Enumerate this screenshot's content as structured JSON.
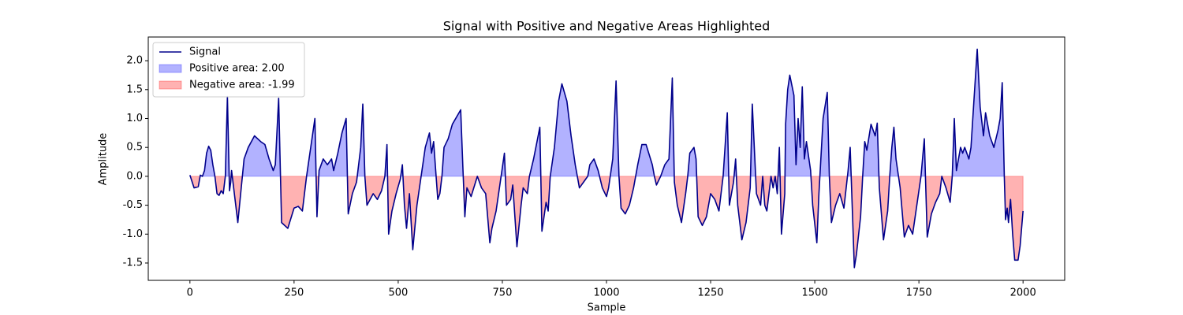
{
  "chart_data": {
    "type": "line",
    "title": "Signal with Positive and Negative Areas Highlighted",
    "x_label": "Sample",
    "y_label": "Amplitude",
    "xlim": [
      -100,
      2100
    ],
    "ylim": [
      -1.8,
      2.41
    ],
    "xticks": [
      0,
      250,
      500,
      750,
      1000,
      1250,
      1500,
      1750,
      2000
    ],
    "yticks": [
      -1.5,
      {
        "value": -1.0,
        "label": "-1.0"
      },
      -0.5,
      {
        "value": 0,
        "label": "0.0"
      },
      0.5,
      {
        "value": 1.0,
        "label": "1.0"
      },
      1.5,
      {
        "value": 2.0,
        "label": "2.0"
      }
    ],
    "legend": "upper left",
    "x": [
      0,
      10,
      20,
      25,
      30,
      35,
      40,
      45,
      50,
      55,
      60,
      65,
      70,
      75,
      80,
      85,
      90,
      95,
      98,
      100,
      115,
      130,
      140,
      155,
      170,
      180,
      190,
      200,
      205,
      213,
      220,
      235,
      250,
      260,
      270,
      280,
      290,
      300,
      305,
      310,
      320,
      330,
      340,
      345,
      355,
      365,
      375,
      380,
      390,
      400,
      410,
      415,
      420,
      425,
      440,
      450,
      460,
      468,
      473,
      477,
      485,
      495,
      505,
      510,
      515,
      520,
      527,
      535,
      545,
      555,
      565,
      575,
      580,
      585,
      595,
      600,
      605,
      610,
      620,
      630,
      650,
      655,
      660,
      665,
      675,
      690,
      700,
      710,
      720,
      725,
      735,
      745,
      755,
      760,
      770,
      775,
      785,
      795,
      800,
      810,
      815,
      825,
      840,
      845,
      855,
      860,
      865,
      875,
      885,
      893,
      905,
      915,
      925,
      935,
      945,
      955,
      960,
      970,
      980,
      990,
      1000,
      1005,
      1015,
      1023,
      1030,
      1035,
      1045,
      1055,
      1065,
      1075,
      1085,
      1095,
      1110,
      1115,
      1120,
      1130,
      1140,
      1150,
      1158,
      1163,
      1170,
      1180,
      1190,
      1195,
      1200,
      1210,
      1215,
      1220,
      1230,
      1240,
      1250,
      1260,
      1270,
      1280,
      1290,
      1295,
      1305,
      1310,
      1315,
      1325,
      1335,
      1345,
      1350,
      1360,
      1370,
      1375,
      1380,
      1385,
      1395,
      1400,
      1405,
      1410,
      1415,
      1420,
      1428,
      1430,
      1435,
      1440,
      1450,
      1455,
      1460,
      1465,
      1470,
      1475,
      1480,
      1490,
      1495,
      1505,
      1510,
      1520,
      1530,
      1535,
      1540,
      1550,
      1560,
      1570,
      1580,
      1585,
      1595,
      1600,
      1610,
      1615,
      1620,
      1625,
      1635,
      1645,
      1650,
      1655,
      1665,
      1675,
      1680,
      1685,
      1690,
      1695,
      1705,
      1715,
      1725,
      1735,
      1745,
      1755,
      1763,
      1770,
      1780,
      1790,
      1800,
      1805,
      1815,
      1825,
      1830,
      1835,
      1840,
      1845,
      1850,
      1855,
      1860,
      1870,
      1875,
      1882,
      1890,
      1897,
      1905,
      1910,
      1920,
      1930,
      1940,
      1945,
      1950,
      1955,
      1958,
      1962,
      1965,
      1970,
      1975,
      1980,
      1988,
      1993,
      2000
    ],
    "series": [
      {
        "name": "Signal",
        "color": "#00008b",
        "values": [
          0.02,
          -0.2,
          -0.18,
          0.02,
          0.0,
          0.1,
          0.4,
          0.52,
          0.45,
          0.2,
          0.0,
          -0.3,
          -0.33,
          -0.25,
          -0.3,
          0.0,
          1.38,
          -0.25,
          -0.1,
          0.1,
          -0.8,
          0.3,
          0.5,
          0.7,
          0.6,
          0.55,
          0.3,
          0.1,
          0.2,
          1.35,
          -0.8,
          -0.9,
          -0.55,
          -0.52,
          -0.6,
          0.0,
          0.5,
          1.0,
          -0.7,
          0.1,
          0.3,
          0.2,
          0.3,
          0.1,
          0.4,
          0.75,
          1.0,
          -0.65,
          -0.3,
          -0.1,
          0.5,
          1.25,
          0.0,
          -0.5,
          -0.3,
          -0.4,
          -0.25,
          0.0,
          0.55,
          -1.0,
          -0.6,
          -0.3,
          -0.05,
          0.2,
          -0.5,
          -0.9,
          -0.3,
          -1.27,
          -0.5,
          0.0,
          0.5,
          0.75,
          0.4,
          0.6,
          -0.4,
          -0.3,
          0.0,
          0.5,
          0.65,
          0.9,
          1.15,
          0.2,
          -0.7,
          -0.2,
          -0.35,
          0.0,
          -0.2,
          -0.3,
          -1.15,
          -0.9,
          -0.6,
          -0.1,
          0.4,
          -0.5,
          -0.4,
          -0.15,
          -1.22,
          -0.5,
          -0.2,
          -0.3,
          0.0,
          0.3,
          0.85,
          -0.95,
          -0.45,
          -0.6,
          0.0,
          0.5,
          1.3,
          1.6,
          1.3,
          0.7,
          0.2,
          -0.2,
          -0.1,
          0.0,
          0.2,
          0.3,
          0.1,
          -0.2,
          -0.35,
          -0.2,
          0.3,
          1.65,
          0.0,
          -0.55,
          -0.65,
          -0.5,
          -0.2,
          0.2,
          0.55,
          0.55,
          0.2,
          0.0,
          -0.15,
          0.0,
          0.2,
          0.3,
          1.7,
          -0.1,
          -0.5,
          -0.8,
          -0.3,
          0.0,
          0.4,
          0.5,
          0.3,
          -0.7,
          -0.85,
          -0.7,
          -0.3,
          -0.4,
          -0.6,
          0.0,
          1.1,
          -0.5,
          -0.1,
          0.3,
          -0.5,
          -1.1,
          -0.8,
          -0.2,
          1.25,
          -0.3,
          -0.5,
          0.0,
          -0.5,
          -0.6,
          0.0,
          -0.2,
          0.0,
          -0.3,
          0.5,
          -1.0,
          -0.3,
          0.9,
          1.5,
          1.75,
          1.4,
          0.2,
          1.0,
          0.5,
          1.55,
          0.3,
          0.6,
          0.1,
          -0.5,
          -1.15,
          -0.3,
          1.0,
          1.45,
          0.0,
          -0.8,
          -0.5,
          -0.3,
          -0.55,
          0.1,
          0.5,
          -1.58,
          -1.35,
          -0.7,
          0.0,
          0.6,
          0.45,
          0.9,
          0.7,
          0.92,
          -0.2,
          -1.1,
          -0.6,
          0.0,
          0.5,
          0.85,
          0.3,
          -0.2,
          -1.05,
          -0.85,
          -1.0,
          -0.5,
          0.0,
          0.65,
          -1.05,
          -0.65,
          -0.45,
          -0.3,
          0.0,
          -0.2,
          -0.45,
          0.0,
          1.0,
          0.1,
          0.3,
          0.5,
          0.4,
          0.5,
          0.3,
          0.5,
          1.3,
          2.2,
          1.2,
          0.7,
          1.1,
          0.7,
          0.5,
          0.8,
          1.0,
          1.62,
          0.0,
          -0.75,
          -0.55,
          -0.8,
          -0.4,
          -1.0,
          -1.45,
          -1.45,
          -1.2,
          -0.6
        ]
      }
    ],
    "areas": [
      {
        "name": "Positive area: 2.00",
        "color": "#0000ff",
        "side": "positive"
      },
      {
        "name": "Negative area: -1.99",
        "color": "#ff0000",
        "side": "negative"
      }
    ]
  }
}
